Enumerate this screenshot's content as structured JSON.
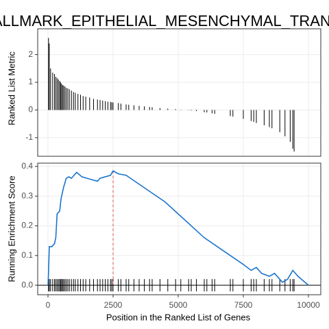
{
  "chart_data": [
    {
      "type": "bar",
      "title": "HALLMARK_EPITHELIAL_MESENCHYMAL_TRANSITION",
      "ylabel": "Ranked List Metric",
      "color": "#000000",
      "x": [
        20,
        50,
        100,
        180,
        250,
        300,
        350,
        400,
        450,
        480,
        520,
        560,
        600,
        650,
        700,
        760,
        820,
        900,
        980,
        1050,
        1150,
        1250,
        1350,
        1450,
        1600,
        1750,
        1900,
        2000,
        2100,
        2200,
        2300,
        2400,
        2450,
        2500,
        2700,
        2800,
        3000,
        3100,
        3300,
        3500,
        3700,
        3900,
        4000,
        4300,
        4600,
        4900,
        5100,
        5400,
        5500,
        5700,
        6000,
        6100,
        6300,
        6400,
        7000,
        7100,
        7500,
        7800,
        7900,
        8000,
        8300,
        8500,
        8600,
        8900,
        9100,
        9300,
        9400,
        9450
      ],
      "values": [
        2.6,
        2.4,
        1.5,
        1.35,
        1.3,
        1.2,
        1.15,
        1.1,
        1.05,
        1.0,
        0.95,
        0.9,
        0.88,
        0.85,
        0.8,
        0.78,
        0.75,
        0.7,
        0.65,
        0.62,
        0.58,
        0.55,
        0.5,
        0.48,
        0.45,
        0.4,
        0.38,
        0.36,
        0.34,
        0.32,
        0.3,
        0.29,
        0.28,
        0.27,
        0.25,
        0.23,
        0.2,
        0.19,
        0.17,
        0.15,
        0.13,
        0.11,
        0.1,
        0.07,
        0.05,
        0.03,
        0.01,
        -0.01,
        -0.02,
        -0.04,
        -0.08,
        -0.09,
        -0.12,
        -0.14,
        -0.22,
        -0.24,
        -0.32,
        -0.4,
        -0.43,
        -0.47,
        -0.55,
        -0.62,
        -0.66,
        -0.8,
        -0.95,
        -1.15,
        -1.4,
        -1.5
      ],
      "xlim": [
        -395,
        10474
      ],
      "xticks": [
        0,
        2500,
        5000,
        7500,
        10000
      ],
      "ylim": [
        -1.67,
        2.93
      ],
      "yticks": [
        -1,
        0,
        1,
        2
      ],
      "grid": true
    },
    {
      "type": "line",
      "ylabel": "Running Enrichment Score",
      "xlabel": "Position in the Ranked List of Genes",
      "color": "#1874cd",
      "peak_color": "#d9534f",
      "x": [
        0,
        20,
        50,
        150,
        250,
        300,
        350,
        450,
        500,
        600,
        700,
        800,
        900,
        1000,
        1100,
        1300,
        1500,
        1700,
        1900,
        2000,
        2200,
        2400,
        2500,
        2700,
        3000,
        3500,
        4000,
        4500,
        5000,
        5500,
        6000,
        6500,
        7000,
        7500,
        7800,
        8000,
        8200,
        8500,
        8700,
        9000,
        9200,
        9400,
        9600,
        10000
      ],
      "values": [
        0,
        0.04,
        0.13,
        0.13,
        0.14,
        0.16,
        0.24,
        0.25,
        0.29,
        0.33,
        0.36,
        0.365,
        0.36,
        0.37,
        0.38,
        0.365,
        0.36,
        0.355,
        0.35,
        0.36,
        0.365,
        0.37,
        0.385,
        0.375,
        0.37,
        0.34,
        0.31,
        0.28,
        0.24,
        0.2,
        0.16,
        0.13,
        0.1,
        0.07,
        0.05,
        0.06,
        0.04,
        0.03,
        0.04,
        0.01,
        0.02,
        0.05,
        0.03,
        0
      ],
      "xlim": [
        -395,
        10474
      ],
      "xticks": [
        0,
        2500,
        5000,
        7500,
        10000
      ],
      "ylim": [
        -0.032,
        0.411
      ],
      "yticks": [
        {
          "value": 0,
          "label": "0.0"
        },
        {
          "value": 0.1,
          "label": "0.1"
        },
        {
          "value": 0.2,
          "label": "0.2"
        },
        {
          "value": 0.3,
          "label": "0.3"
        },
        {
          "value": 0.4,
          "label": "0.4"
        }
      ],
      "grid": true
    }
  ]
}
